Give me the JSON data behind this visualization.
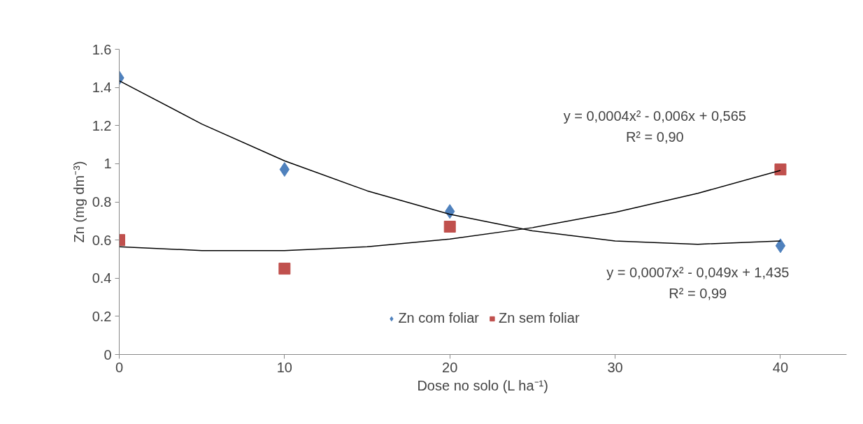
{
  "chart_data": {
    "type": "scatter",
    "xlabel": "Dose no solo (L ha⁻¹)",
    "ylabel": "Zn (mg dm⁻³)",
    "x": [
      0,
      10,
      20,
      40
    ],
    "series": [
      {
        "name": "Zn com foliar",
        "color": "#4f81bd",
        "marker": "diamond",
        "values": [
          1.45,
          0.97,
          0.75,
          0.57
        ]
      },
      {
        "name": "Zn sem foliar",
        "color": "#c0504d",
        "marker": "square",
        "values": [
          0.6,
          0.45,
          0.67,
          0.97
        ]
      },
      {
        "type": "line",
        "color": "#000000",
        "marker": "none",
        "x": [
          0,
          5,
          10,
          15,
          20,
          25,
          30,
          35,
          40
        ],
        "values": [
          1.435,
          1.208,
          1.015,
          0.858,
          0.735,
          0.648,
          0.595,
          0.578,
          0.595
        ]
      },
      {
        "type": "line",
        "color": "#000000",
        "marker": "none",
        "x": [
          0,
          5,
          10,
          15,
          20,
          25,
          30,
          35,
          40
        ],
        "values": [
          0.565,
          0.545,
          0.545,
          0.565,
          0.605,
          0.665,
          0.745,
          0.845,
          0.965
        ]
      }
    ],
    "annotations": [
      "y = 0,0004x² - 0,006x + 0,565",
      "R² = 0,90",
      "y = 0,0007x² - 0,049x + 1,435",
      "R² = 0,99"
    ],
    "xlim": [
      0,
      44
    ],
    "xticks": [
      0,
      10,
      20,
      30,
      40
    ],
    "ylim": [
      0,
      1.6
    ],
    "yticks": [
      0,
      0.2,
      0.4,
      0.6,
      0.8,
      1,
      1.2,
      1.4,
      1.6
    ],
    "grid": false,
    "legend": "bottom"
  }
}
